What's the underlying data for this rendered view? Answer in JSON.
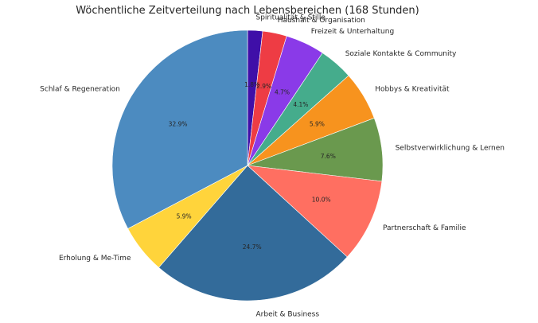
{
  "chart_data": {
    "type": "pie",
    "title": "Wöchentliche Zeitverteilung nach Lebensbereichen (168 Stunden)",
    "start_angle": "top",
    "direction": "clockwise",
    "slices": [
      {
        "label": "Spiritualität & Stille",
        "value": 1.8,
        "pct_label": "1.8%",
        "color": "#3f0fa8"
      },
      {
        "label": "Haushalt & Organisation",
        "value": 2.9,
        "pct_label": "2.9%",
        "color": "#ee3c44"
      },
      {
        "label": "Freizeit & Unterhaltung",
        "value": 4.7,
        "pct_label": "4.7%",
        "color": "#8a3ae8"
      },
      {
        "label": "Soziale Kontakte & Community",
        "value": 4.1,
        "pct_label": "4.1%",
        "color": "#45ac8c"
      },
      {
        "label": "Hobbys & Kreativität",
        "value": 5.9,
        "pct_label": "5.9%",
        "color": "#f7931e"
      },
      {
        "label": "Selbstverwirklichung & Lernen",
        "value": 7.6,
        "pct_label": "7.6%",
        "color": "#6a994e"
      },
      {
        "label": "Partnerschaft & Familie",
        "value": 10.0,
        "pct_label": "10.0%",
        "color": "#ff6f61"
      },
      {
        "label": "Arbeit & Business",
        "value": 24.7,
        "pct_label": "24.7%",
        "color": "#336b9a"
      },
      {
        "label": "Erholung & Me-Time",
        "value": 5.9,
        "pct_label": "5.9%",
        "color": "#ffd43b"
      },
      {
        "label": "Schlaf & Regeneration",
        "value": 32.9,
        "pct_label": "32.9%",
        "color": "#4c8bc0"
      }
    ]
  }
}
